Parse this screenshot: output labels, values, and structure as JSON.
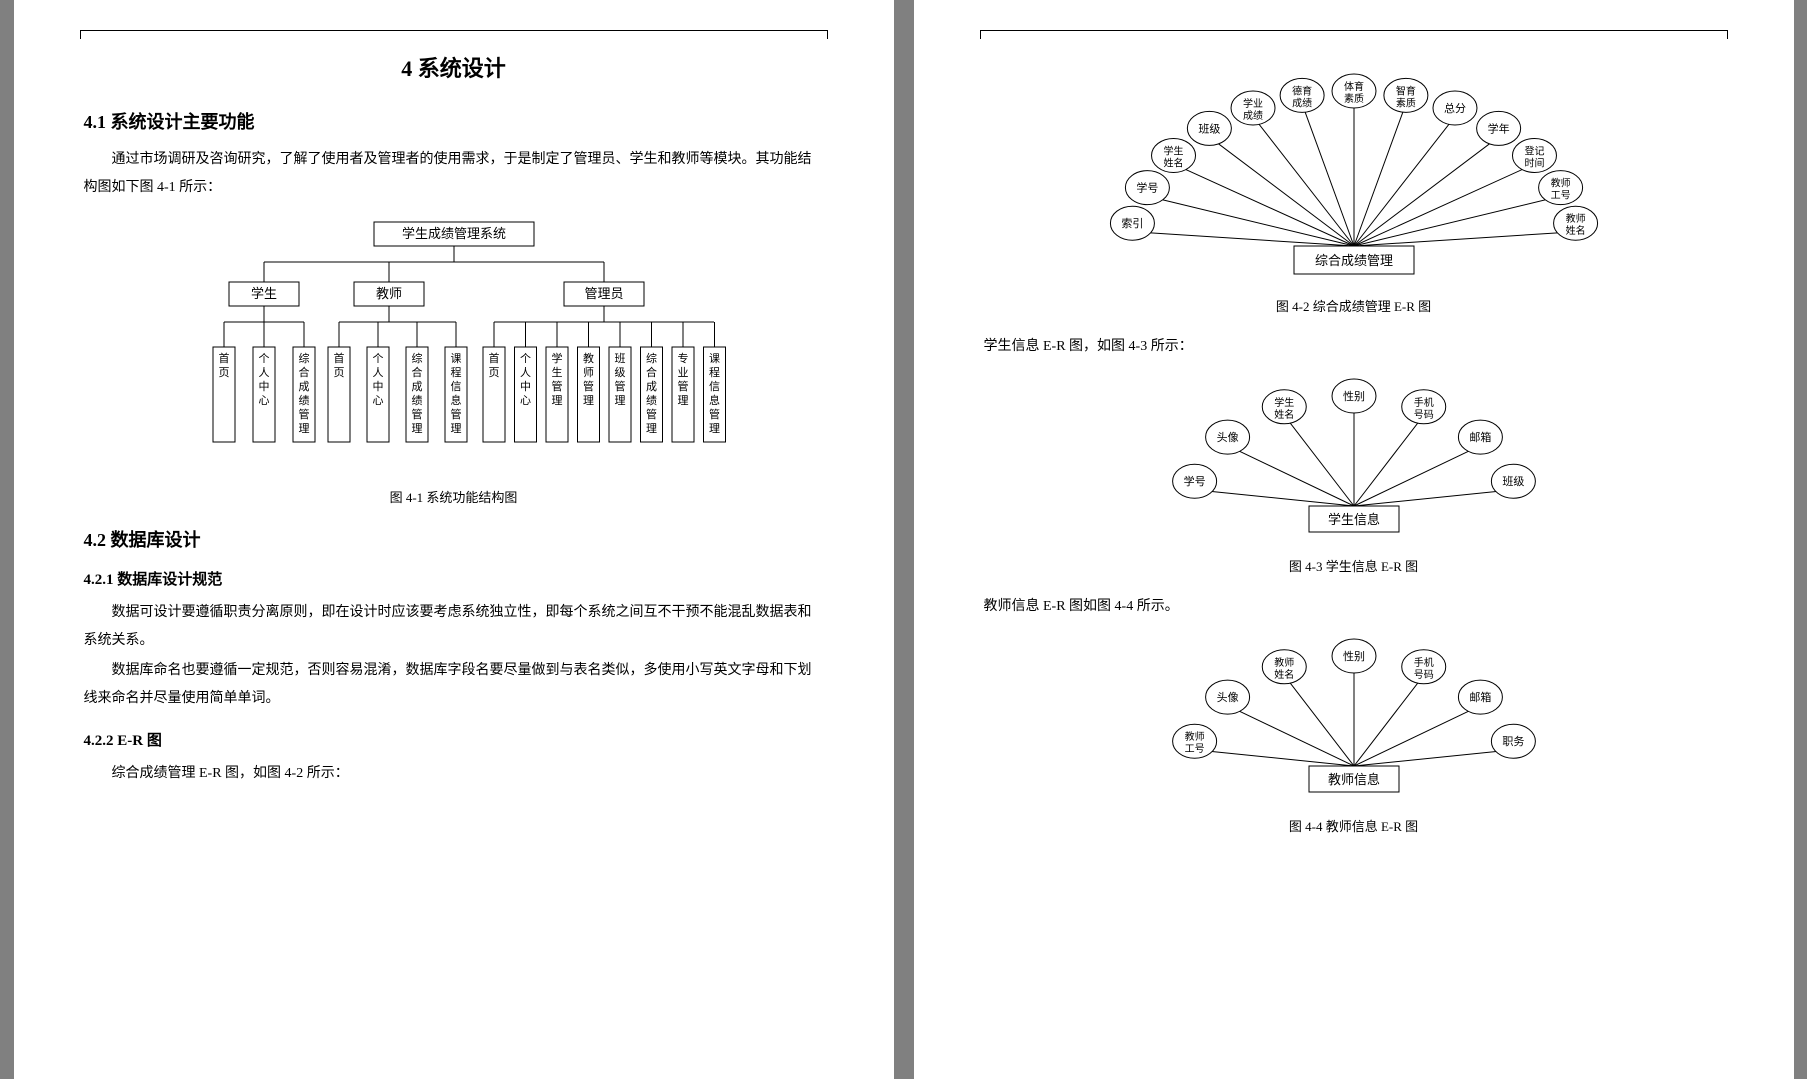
{
  "colors": {
    "bg": "#808080",
    "page": "#ffffff",
    "line": "#000000",
    "text": "#000000"
  },
  "left_page": {
    "chapter_title": "4  系统设计",
    "section_4_1": "4.1  系统设计主要功能",
    "p_4_1": "通过市场调研及咨询研究，了解了使用者及管理者的使用需求，于是制定了管理员、学生和教师等模块。其功能结构图如下图 4-1 所示：",
    "fig_4_1_caption": "图 4-1 系统功能结构图",
    "section_4_2": "4.2  数据库设计",
    "sub_4_2_1": "4.2.1  数据库设计规范",
    "p_4_2_1a": "数据可设计要遵循职责分离原则，即在设计时应该要考虑系统独立性，即每个系统之间互不干预不能混乱数据表和系统关系。",
    "p_4_2_1b": "数据库命名也要遵循一定规范，否则容易混淆，数据库字段名要尽量做到与表名类似，多使用小写英文字母和下划线来命名并尽量使用简单单词。",
    "sub_4_2_2": "4.2.2 E-R 图",
    "p_4_2_2": "综合成绩管理 E-R 图，如图 4-2 所示：",
    "tree": {
      "root": "学生成绩管理系统",
      "level2": [
        "学生",
        "教师",
        "管理员"
      ],
      "student_children": [
        "首页",
        "个人中心",
        "综合成绩管理"
      ],
      "teacher_children": [
        "首页",
        "个人中心",
        "综合成绩管理",
        "课程信息管理"
      ],
      "admin_children": [
        "首页",
        "个人中心",
        "学生管理",
        "教师管理",
        "班级管理",
        "综合成绩管理",
        "专业管理",
        "课程信息管理"
      ]
    }
  },
  "right_page": {
    "fig_4_2_caption": "图 4-2 综合成绩管理 E-R 图",
    "p_4_3_intro": "学生信息 E-R 图，如图 4-3 所示：",
    "fig_4_3_caption": "图 4-3 学生信息 E-R 图",
    "p_4_4_intro": "教师信息 E-R 图如图 4-4 所示。",
    "fig_4_4_caption": "图 4-4 教师信息 E-R 图",
    "er_4_2": {
      "center": "综合成绩管理",
      "attrs": [
        "索引",
        "学号",
        "学生姓名",
        "班级",
        "学业成绩",
        "德育成绩",
        "体育素质",
        "智育素质",
        "总分",
        "学年",
        "登记时间",
        "教师工号",
        "教师姓名"
      ]
    },
    "er_4_3": {
      "center": "学生信息",
      "attrs": [
        "学号",
        "头像",
        "学生姓名",
        "性别",
        "手机号码",
        "邮箱",
        "班级"
      ]
    },
    "er_4_4": {
      "center": "教师信息",
      "attrs": [
        "教师工号",
        "头像",
        "教师姓名",
        "性别",
        "手机号码",
        "邮箱",
        "职务"
      ]
    }
  }
}
